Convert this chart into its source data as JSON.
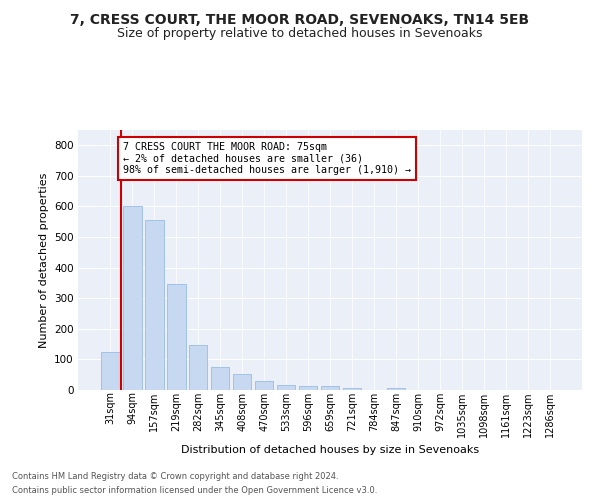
{
  "title1": "7, CRESS COURT, THE MOOR ROAD, SEVENOAKS, TN14 5EB",
  "title2": "Size of property relative to detached houses in Sevenoaks",
  "xlabel": "Distribution of detached houses by size in Sevenoaks",
  "ylabel": "Number of detached properties",
  "categories": [
    "31sqm",
    "94sqm",
    "157sqm",
    "219sqm",
    "282sqm",
    "345sqm",
    "408sqm",
    "470sqm",
    "533sqm",
    "596sqm",
    "659sqm",
    "721sqm",
    "784sqm",
    "847sqm",
    "910sqm",
    "972sqm",
    "1035sqm",
    "1098sqm",
    "1161sqm",
    "1223sqm",
    "1286sqm"
  ],
  "values": [
    125,
    600,
    555,
    348,
    148,
    75,
    52,
    30,
    15,
    14,
    14,
    8,
    0,
    8,
    0,
    0,
    0,
    0,
    0,
    0,
    0
  ],
  "bar_color": "#c6d9f0",
  "bar_edgecolor": "#8db4e2",
  "highlight_color": "#cc0000",
  "ylim": [
    0,
    850
  ],
  "yticks": [
    0,
    100,
    200,
    300,
    400,
    500,
    600,
    700,
    800
  ],
  "annotation_box_text": "7 CRESS COURT THE MOOR ROAD: 75sqm\n← 2% of detached houses are smaller (36)\n98% of semi-detached houses are larger (1,910) →",
  "annotation_box_color": "#cc0000",
  "footer1": "Contains HM Land Registry data © Crown copyright and database right 2024.",
  "footer2": "Contains public sector information licensed under the Open Government Licence v3.0.",
  "bg_color": "#eaeff8",
  "grid_color": "#ffffff",
  "title1_fontsize": 10,
  "title2_fontsize": 9,
  "xlabel_fontsize": 8,
  "ylabel_fontsize": 8
}
